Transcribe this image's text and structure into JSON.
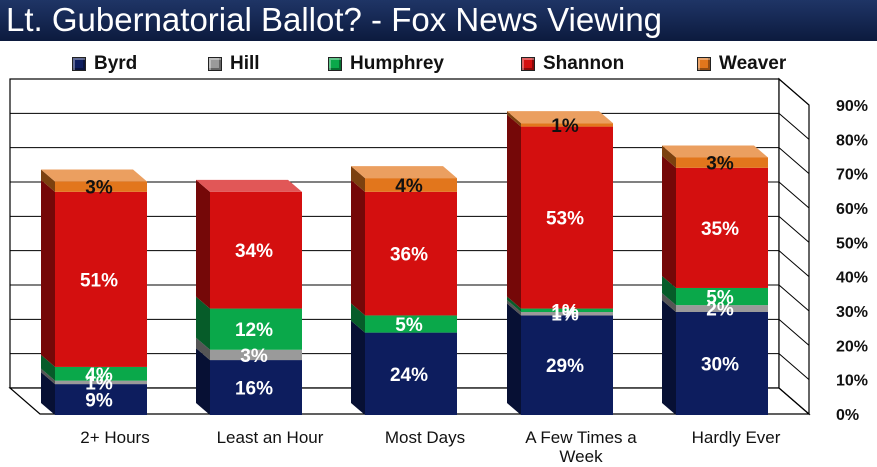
{
  "title": "Lt. Gubernatorial Ballot? - Fox News Viewing",
  "colors": {
    "Byrd": "#0d1d5e",
    "Hill": "#9a9a9a",
    "Humphrey": "#0aa84a",
    "Shannon": "#d40f0f",
    "Weaver": "#e2761c"
  },
  "chart_data": {
    "type": "bar",
    "stacked": true,
    "title": "Lt. Gubernatorial Ballot? - Fox News Viewing",
    "categories": [
      "2+ Hours",
      "Least an Hour",
      "Most Days",
      "A Few Times a Week",
      "Hardly Ever"
    ],
    "category_lines": [
      [
        "2+ Hours"
      ],
      [
        "Least an Hour"
      ],
      [
        "Most Days"
      ],
      [
        "A Few Times a",
        "Week"
      ],
      [
        "Hardly Ever"
      ]
    ],
    "series": [
      {
        "name": "Byrd",
        "values": [
          9,
          16,
          24,
          29,
          30
        ]
      },
      {
        "name": "Hill",
        "values": [
          1,
          3,
          0,
          1,
          2
        ]
      },
      {
        "name": "Humphrey",
        "values": [
          4,
          12,
          5,
          1,
          5
        ]
      },
      {
        "name": "Shannon",
        "values": [
          51,
          34,
          36,
          53,
          35
        ]
      },
      {
        "name": "Weaver",
        "values": [
          3,
          0,
          4,
          1,
          3
        ]
      }
    ],
    "value_labels": [
      [
        "9%",
        "1%",
        "4%",
        "51%",
        "3%"
      ],
      [
        "16%",
        "3%",
        "12%",
        "34%",
        ""
      ],
      [
        "24%",
        "",
        "5%",
        "36%",
        "4%"
      ],
      [
        "29%",
        "1%",
        "1%",
        "53%",
        "1%"
      ],
      [
        "30%",
        "2%",
        "5%",
        "35%",
        "3%"
      ]
    ],
    "ylim": [
      0,
      90
    ],
    "yticks": [
      "0%",
      "10%",
      "20%",
      "30%",
      "40%",
      "50%",
      "60%",
      "70%",
      "80%",
      "90%"
    ],
    "legend_position": "top",
    "grid": true
  }
}
